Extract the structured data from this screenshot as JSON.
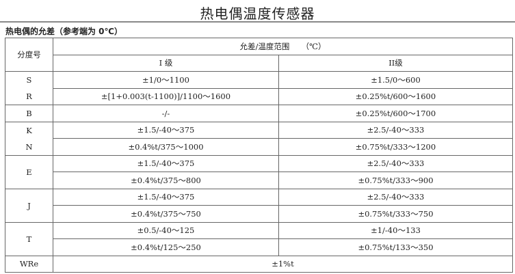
{
  "title": "热电偶温度传感器",
  "subtitle": "热电偶的允差（参考端为 0℃）",
  "table": {
    "col_header": "分度号",
    "group_header": "允差/温度范围　　（℃）",
    "class1": "I 级",
    "class2": "II级",
    "rows": [
      {
        "type": "S",
        "c1": "±1/0～1100",
        "c2": "±1.5/0～600"
      },
      {
        "type": "R",
        "c1": "±[1+0.003(t-1100)]/1100～1600",
        "c2": "±0.25%t/600～1600"
      },
      {
        "type": "B",
        "c1": "-/-",
        "c2": "±0.25%t/600～1700"
      },
      {
        "type": "K",
        "c1": "±1.5/-40～375",
        "c2": "±2.5/-40～333"
      },
      {
        "type": "N",
        "c1": "±0.4%t/375～1000",
        "c2": "±0.75%t/333～1200"
      },
      {
        "type": "E",
        "c1": "±1.5/-40～375",
        "c2": "±2.5/-40～333"
      },
      {
        "type": "",
        "c1": "±0.4%t/375～800",
        "c2": "±0.75%t/333～900"
      },
      {
        "type": "J",
        "c1": "±1.5/-40～375",
        "c2": "±2.5/-40～333"
      },
      {
        "type": "",
        "c1": "±0.4%t/375～750",
        "c2": "±0.75%t/333～750"
      },
      {
        "type": "T",
        "c1": "±0.5/-40～125",
        "c2": "±1/-40～133"
      },
      {
        "type": "",
        "c1": "±0.4%t/125～250",
        "c2": "±0.75%t/133～350"
      }
    ],
    "wre": {
      "type": "WRe",
      "value": "±1%t"
    }
  }
}
